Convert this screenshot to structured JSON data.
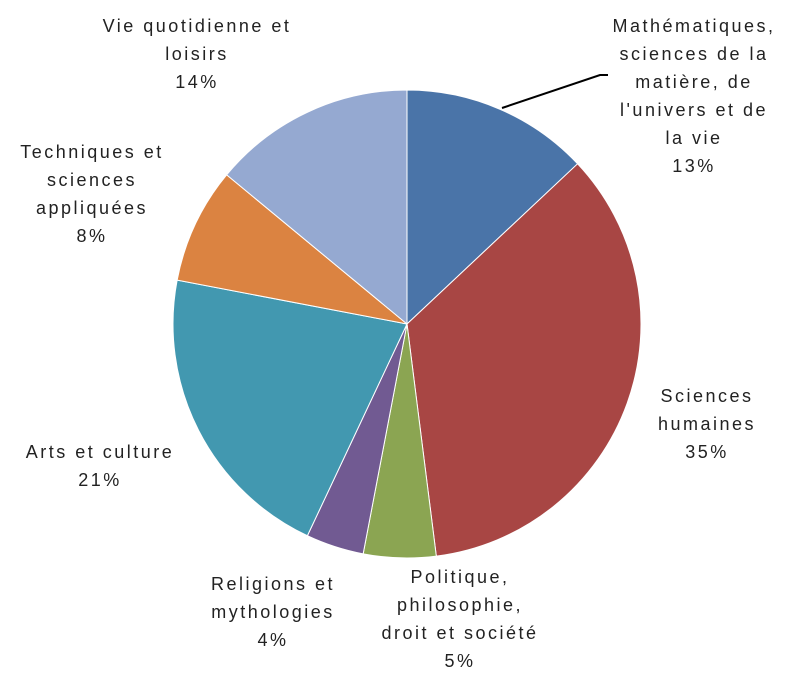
{
  "chart_data": {
    "type": "pie",
    "categories": [
      "Mathématiques, sciences de la matière, de l'univers et de la vie",
      "Sciences humaines",
      "Politique, philosophie, droit et société",
      "Religions et mythologies",
      "Arts et culture",
      "Techniques et sciences appliquées",
      "Vie quotidienne et loisirs"
    ],
    "values": [
      13,
      35,
      5,
      4,
      21,
      8,
      14
    ],
    "value_labels": [
      "13%",
      "35%",
      "5%",
      "4%",
      "21%",
      "8%",
      "14%"
    ],
    "colors": [
      "#4a74a8",
      "#a84644",
      "#8ba552",
      "#715a92",
      "#4298b0",
      "#db8341",
      "#95a9d1"
    ]
  }
}
